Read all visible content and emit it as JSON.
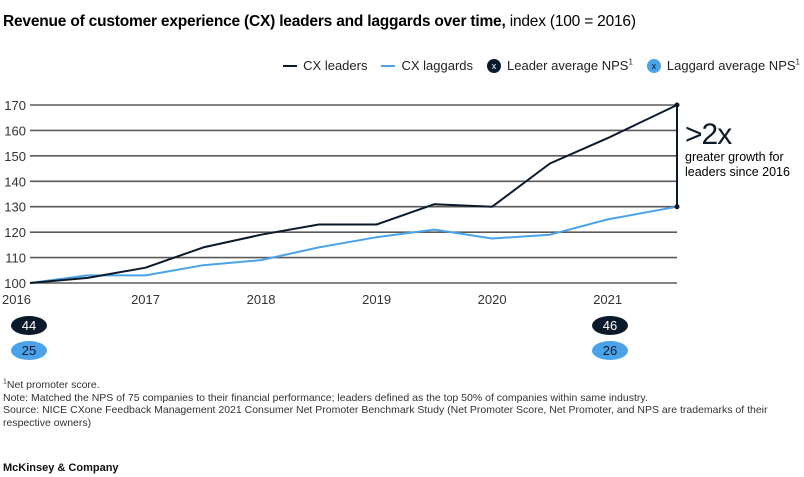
{
  "title": {
    "bold": "Revenue of customer experience (CX) leaders and laggards over time,",
    "unit": " index (100 = 2016)"
  },
  "legend": {
    "leaders_label": "CX leaders",
    "laggards_label": "CX laggards",
    "leader_nps_label": "Leader average NPS",
    "laggard_nps_label": "Laggard average NPS",
    "footnote_marker": "1",
    "badge_glyph": "x"
  },
  "colors": {
    "leaders": "#0b1a2b",
    "laggards": "#4aa3e8",
    "grid": "#5a5a5a"
  },
  "annotation": {
    "big": ">2x",
    "line1": "greater growth for",
    "line2": "leaders since 2016"
  },
  "nps": {
    "leader_2016": "44",
    "laggard_2016": "25",
    "leader_2021": "46",
    "laggard_2021": "26"
  },
  "footnotes": {
    "marker": "1",
    "nps_def": "Net promoter score.",
    "note": "Note: Matched the NPS of 75 companies to their financial performance; leaders defined as the top 50% of companies within same industry.",
    "source": "Source: NICE CXone Feedback Management 2021 Consumer Net Promoter Benchmark Study (Net Promoter Score, Net Promoter, and NPS are trademarks of their respective owners)"
  },
  "brand": "McKinsey & Company",
  "chart_data": {
    "type": "line",
    "title": "Revenue of customer experience (CX) leaders and laggards over time, index (100 = 2016)",
    "xlabel": "",
    "ylabel": "",
    "x": [
      2016.0,
      2016.5,
      2017.0,
      2017.5,
      2018.0,
      2018.5,
      2019.0,
      2019.5,
      2020.0,
      2020.5,
      2021.0,
      2021.6
    ],
    "xlim": [
      2016.0,
      2021.6
    ],
    "x_ticks": [
      "2016",
      "2017",
      "2018",
      "2019",
      "2020",
      "2021"
    ],
    "x_tick_values": [
      2016,
      2017,
      2018,
      2019,
      2020,
      2021
    ],
    "ylim": [
      100,
      170
    ],
    "y_ticks": [
      100,
      110,
      120,
      130,
      140,
      150,
      160,
      170
    ],
    "grid": true,
    "legend_position": "top-right",
    "series": [
      {
        "name": "CX leaders",
        "values": [
          100,
          102,
          106,
          114,
          119,
          123,
          123,
          131,
          130,
          147,
          157,
          170
        ]
      },
      {
        "name": "CX laggards",
        "values": [
          100,
          103,
          103,
          107,
          109,
          114,
          118,
          121,
          117.5,
          119,
          125,
          130
        ]
      }
    ],
    "nps_markers": [
      {
        "series": "Leader average NPS",
        "year": 2016,
        "value": 44
      },
      {
        "series": "Laggard average NPS",
        "year": 2016,
        "value": 25
      },
      {
        "series": "Leader average NPS",
        "year": 2021,
        "value": 46
      },
      {
        "series": "Laggard average NPS",
        "year": 2021,
        "value": 26
      }
    ],
    "annotation": ">2x greater growth for leaders since 2016"
  }
}
